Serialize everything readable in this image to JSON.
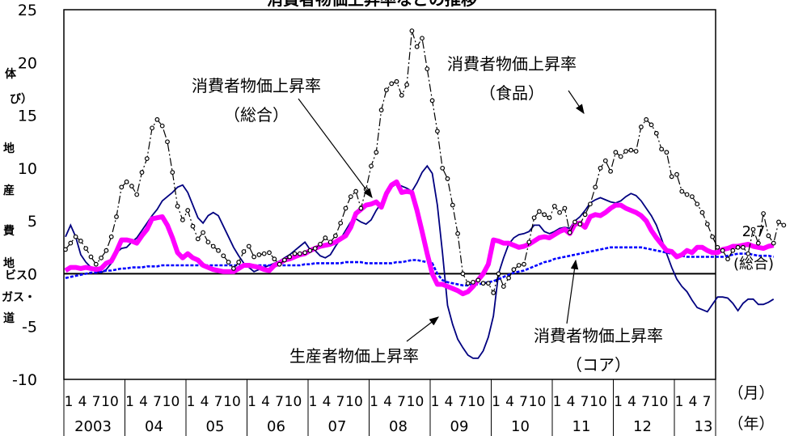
{
  "chart_data": {
    "type": "line",
    "title": "消費者物価上昇率などの推移",
    "x_start": "2003-01",
    "x_end": "2013-09",
    "ylim": [
      -10,
      25
    ],
    "yticks": [
      -10,
      -5,
      0,
      5,
      10,
      15,
      20,
      25
    ],
    "month_ticks": [
      "1",
      "4",
      "7",
      "10"
    ],
    "last_month_ticks": [
      "1",
      "4",
      "7"
    ],
    "years": [
      "2003",
      "04",
      "05",
      "06",
      "07",
      "08",
      "09",
      "10",
      "11",
      "12",
      "13"
    ],
    "x_unit": "（月）",
    "year_unit": "（年）",
    "end_label": "2.7",
    "end_label_sub": "(総合)",
    "colors": {
      "food": "#000000",
      "sogo": "#ff00ff",
      "core": "#0000ff",
      "ppi": "#000080",
      "axis": "#000000"
    },
    "annotations": [
      {
        "name": "annot-sogo",
        "lines": [
          "消費者物価上昇率",
          "（総合）"
        ]
      },
      {
        "name": "annot-food",
        "lines": [
          "消費者物価上昇率",
          "（食品）"
        ]
      },
      {
        "name": "annot-ppi",
        "lines": [
          "生産者物価上昇率"
        ]
      },
      {
        "name": "annot-core",
        "lines": [
          "消費者物価上昇率",
          "（コア）"
        ]
      }
    ],
    "left_edge_fragments": [
      "体",
      "び）",
      "地",
      "産",
      "費",
      "地",
      "ビス",
      "ガス・",
      "道"
    ],
    "series": [
      {
        "key": "food",
        "values": [
          2.3,
          2.9,
          3.5,
          3.1,
          2.4,
          1.6,
          0.9,
          1.5,
          2.2,
          3.5,
          5.4,
          8.2,
          8.7,
          8.3,
          7.5,
          9.6,
          10.9,
          13.8,
          14.6,
          14.0,
          12.5,
          9.6,
          6.4,
          5.1,
          6.0,
          4.5,
          3.3,
          3.9,
          3.0,
          2.6,
          2.2,
          1.7,
          1.1,
          0.5,
          1.1,
          2.1,
          2.6,
          1.6,
          1.8,
          1.9,
          2.0,
          1.4,
          0.9,
          1.3,
          1.6,
          1.9,
          1.9,
          2.0,
          2.2,
          2.4,
          2.8,
          3.4,
          3.0,
          3.6,
          4.8,
          6.2,
          7.3,
          7.8,
          6.2,
          8.0,
          10.2,
          11.5,
          15.5,
          17.4,
          18.0,
          18.2,
          16.9,
          17.9,
          23.0,
          21.5,
          22.3,
          19.4,
          16.4,
          13.5,
          10.0,
          9.0,
          6.5,
          3.8,
          0.0,
          -0.9,
          -0.8,
          -0.6,
          -0.9,
          -0.9,
          -1.8,
          0.0,
          -1.2,
          -0.4,
          0.4,
          0.8,
          0.9,
          3.0,
          5.3,
          5.9,
          5.6,
          5.3,
          6.4,
          5.8,
          6.2,
          3.9,
          4.9,
          4.7,
          5.6,
          6.6,
          8.2,
          10.0,
          10.7,
          9.7,
          11.5,
          11.1,
          11.6,
          11.7,
          11.6,
          13.9,
          14.6,
          14.1,
          13.3,
          11.8,
          11.5,
          9.2,
          9.4,
          7.8,
          7.5,
          7.3,
          6.6,
          5.8,
          4.7,
          3.5,
          2.5,
          2.2,
          1.4,
          2.2,
          2.5,
          2.5,
          1.9,
          4.2,
          2.9,
          5.7,
          3.6,
          2.9,
          4.9,
          4.6
        ]
      },
      {
        "key": "sogo",
        "values": [
          0.3,
          0.6,
          0.6,
          0.5,
          0.6,
          0.5,
          0.4,
          0.5,
          1.0,
          1.2,
          2.1,
          3.2,
          3.2,
          3.1,
          2.9,
          3.6,
          4.2,
          5.2,
          5.3,
          5.4,
          4.6,
          3.4,
          2.0,
          1.5,
          1.9,
          1.5,
          1.3,
          0.8,
          0.6,
          0.4,
          0.3,
          0.2,
          0.2,
          0.2,
          0.5,
          0.8,
          0.8,
          0.7,
          0.6,
          0.4,
          0.3,
          0.8,
          1.0,
          1.3,
          1.4,
          1.6,
          1.8,
          1.9,
          2.2,
          2.4,
          2.6,
          2.7,
          2.8,
          3.0,
          3.3,
          3.6,
          4.4,
          5.7,
          6.1,
          6.5,
          6.6,
          6.8,
          6.3,
          7.6,
          8.4,
          8.7,
          7.7,
          7.8,
          7.7,
          6.0,
          4.0,
          1.9,
          0.0,
          -1.0,
          -1.0,
          -1.2,
          -1.4,
          -1.6,
          -1.9,
          -1.7,
          -1.2,
          -0.6,
          0.0,
          0.9,
          3.2,
          3.1,
          2.9,
          2.9,
          2.7,
          2.5,
          2.6,
          2.8,
          3.1,
          3.4,
          3.5,
          3.4,
          3.7,
          4.0,
          4.2,
          3.8,
          4.7,
          4.8,
          4.4,
          5.4,
          5.6,
          5.5,
          5.8,
          6.2,
          6.5,
          6.5,
          6.2,
          6.0,
          5.8,
          5.5,
          5.0,
          4.1,
          3.4,
          2.8,
          2.2,
          2.1,
          1.6,
          1.8,
          2.2,
          2.0,
          2.5,
          2.5,
          2.2,
          2.0,
          2.0,
          2.3,
          2.4,
          2.6,
          2.6,
          2.7,
          2.8,
          2.6,
          2.5,
          2.4,
          2.6,
          2.7
        ]
      },
      {
        "key": "core",
        "values": [
          -0.4,
          -0.3,
          -0.2,
          -0.1,
          0.0,
          0.1,
          0.1,
          0.2,
          0.3,
          0.3,
          0.4,
          0.5,
          0.5,
          0.6,
          0.6,
          0.6,
          0.7,
          0.7,
          0.7,
          0.8,
          0.8,
          0.8,
          0.8,
          0.8,
          0.8,
          0.8,
          0.8,
          0.8,
          0.8,
          0.8,
          0.8,
          0.8,
          0.8,
          0.8,
          0.8,
          0.8,
          0.8,
          0.8,
          0.8,
          0.8,
          0.8,
          0.8,
          0.8,
          0.8,
          0.8,
          0.8,
          0.8,
          0.9,
          0.9,
          1.0,
          1.0,
          1.0,
          1.0,
          1.0,
          1.0,
          1.1,
          1.1,
          1.1,
          1.1,
          1.0,
          1.0,
          1.0,
          1.0,
          1.0,
          1.0,
          1.1,
          1.1,
          1.2,
          1.3,
          1.3,
          1.2,
          1.1,
          1.0,
          0.0,
          -0.6,
          -0.8,
          -0.9,
          -1.0,
          -1.1,
          -1.1,
          -1.0,
          -1.0,
          -0.9,
          -0.8,
          -0.7,
          -0.5,
          -0.3,
          -0.1,
          0.1,
          0.2,
          0.3,
          0.5,
          0.7,
          0.9,
          1.1,
          1.2,
          1.4,
          1.5,
          1.6,
          1.7,
          1.8,
          1.9,
          2.0,
          2.1,
          2.2,
          2.3,
          2.4,
          2.5,
          2.5,
          2.5,
          2.5,
          2.5,
          2.5,
          2.5,
          2.4,
          2.3,
          2.2,
          2.1,
          2.0,
          1.9,
          1.8,
          1.7,
          1.6,
          1.6,
          1.6,
          1.6,
          1.6,
          1.6,
          1.6,
          1.6,
          1.7,
          1.8,
          1.9,
          1.9,
          1.9,
          1.8,
          1.7,
          1.7,
          1.7,
          1.6
        ]
      },
      {
        "key": "ppi",
        "values": [
          3.5,
          4.6,
          3.5,
          1.8,
          1.1,
          0.6,
          0.2,
          0.1,
          0.4,
          1.0,
          2.0,
          2.4,
          2.5,
          3.0,
          3.4,
          4.1,
          4.8,
          5.5,
          6.1,
          6.9,
          7.3,
          7.7,
          8.2,
          8.4,
          7.7,
          6.5,
          5.3,
          4.8,
          5.5,
          5.8,
          5.5,
          4.5,
          3.5,
          2.5,
          1.7,
          1.0,
          0.6,
          0.2,
          0.4,
          0.6,
          0.8,
          1.0,
          1.2,
          1.5,
          1.8,
          2.2,
          2.6,
          3.0,
          2.3,
          2.2,
          1.7,
          1.5,
          1.8,
          2.6,
          3.3,
          4.1,
          4.9,
          5.2,
          4.9,
          4.7,
          5.1,
          6.0,
          6.7,
          7.4,
          8.2,
          8.5,
          8.3,
          8.1,
          7.8,
          8.6,
          9.6,
          10.2,
          9.5,
          6.5,
          2.0,
          -3.0,
          -4.8,
          -6.2,
          -7.0,
          -7.7,
          -8.0,
          -8.0,
          -7.3,
          -6.0,
          -4.0,
          0.0,
          1.5,
          2.8,
          3.4,
          3.7,
          3.8,
          4.0,
          4.6,
          4.6,
          4.0,
          3.8,
          4.0,
          4.3,
          4.4,
          4.3,
          5.0,
          5.4,
          6.0,
          6.7,
          7.0,
          7.2,
          7.0,
          6.8,
          6.7,
          6.9,
          7.3,
          7.6,
          7.4,
          6.9,
          6.2,
          5.5,
          4.6,
          3.3,
          1.9,
          0.6,
          -0.5,
          -1.2,
          -1.7,
          -2.5,
          -3.2,
          -3.4,
          -3.6,
          -2.9,
          -2.2,
          -2.2,
          -2.3,
          -2.8,
          -3.5,
          -2.8,
          -2.4,
          -2.4,
          -2.9,
          -2.9,
          -2.7,
          -2.4
        ]
      }
    ]
  }
}
